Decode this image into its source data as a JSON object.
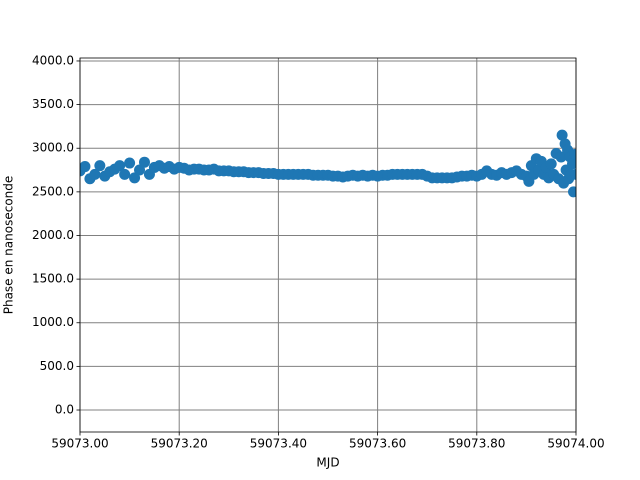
{
  "chart_data": {
    "type": "scatter",
    "x_label": "MJD",
    "y_label": "Phase en nanoseconde",
    "color": "#1f77b4",
    "grid": true,
    "xlim": [
      59073.0,
      59074.0
    ],
    "ylim": [
      -252,
      4034
    ],
    "xticks": [
      {
        "value": 59073.0,
        "label": "59073.00"
      },
      {
        "value": 59073.2,
        "label": "59073.20"
      },
      {
        "value": 59073.4,
        "label": "59073.40"
      },
      {
        "value": 59073.6,
        "label": "59073.60"
      },
      {
        "value": 59073.8,
        "label": "59073.80"
      },
      {
        "value": 59074.0,
        "label": "59074.00"
      }
    ],
    "yticks": [
      {
        "value": 0,
        "label": "0.0"
      },
      {
        "value": 500,
        "label": "500.0"
      },
      {
        "value": 1000,
        "label": "1000.0"
      },
      {
        "value": 1500,
        "label": "1500.0"
      },
      {
        "value": 2000,
        "label": "2000.0"
      },
      {
        "value": 2500,
        "label": "2500.0"
      },
      {
        "value": 3000,
        "label": "3000.0"
      },
      {
        "value": 3500,
        "label": "3500.0"
      },
      {
        "value": 4000,
        "label": "4000.0"
      }
    ],
    "x": [
      59073.0,
      59073.01,
      59073.02,
      59073.03,
      59073.04,
      59073.05,
      59073.06,
      59073.07,
      59073.08,
      59073.09,
      59073.1,
      59073.11,
      59073.12,
      59073.13,
      59073.14,
      59073.15,
      59073.16,
      59073.17,
      59073.18,
      59073.19,
      59073.2,
      59073.21,
      59073.22,
      59073.23,
      59073.24,
      59073.25,
      59073.26,
      59073.27,
      59073.28,
      59073.29,
      59073.3,
      59073.31,
      59073.32,
      59073.33,
      59073.34,
      59073.35,
      59073.36,
      59073.37,
      59073.38,
      59073.39,
      59073.4,
      59073.41,
      59073.42,
      59073.43,
      59073.44,
      59073.45,
      59073.46,
      59073.47,
      59073.48,
      59073.49,
      59073.5,
      59073.51,
      59073.52,
      59073.53,
      59073.54,
      59073.55,
      59073.56,
      59073.57,
      59073.58,
      59073.59,
      59073.6,
      59073.61,
      59073.62,
      59073.63,
      59073.64,
      59073.65,
      59073.66,
      59073.67,
      59073.68,
      59073.69,
      59073.7,
      59073.71,
      59073.72,
      59073.73,
      59073.74,
      59073.75,
      59073.76,
      59073.77,
      59073.78,
      59073.79,
      59073.8,
      59073.81,
      59073.82,
      59073.83,
      59073.84,
      59073.85,
      59073.86,
      59073.87,
      59073.88,
      59073.89,
      59073.9,
      59073.905,
      59073.91,
      59073.915,
      59073.92,
      59073.925,
      59073.93,
      59073.935,
      59073.94,
      59073.945,
      59073.95,
      59073.955,
      59073.96,
      59073.965,
      59073.97,
      59073.972,
      59073.975,
      59073.978,
      59073.98,
      59073.983,
      59073.985,
      59073.988,
      59073.99,
      59073.993,
      59073.995,
      59073.998,
      59074.0
    ],
    "y": [
      2740,
      2790,
      2650,
      2700,
      2800,
      2680,
      2730,
      2760,
      2800,
      2700,
      2830,
      2660,
      2750,
      2840,
      2700,
      2780,
      2800,
      2770,
      2790,
      2760,
      2780,
      2770,
      2750,
      2760,
      2760,
      2750,
      2750,
      2760,
      2740,
      2740,
      2740,
      2730,
      2730,
      2730,
      2720,
      2720,
      2720,
      2710,
      2710,
      2710,
      2700,
      2700,
      2700,
      2700,
      2700,
      2700,
      2700,
      2690,
      2690,
      2690,
      2690,
      2680,
      2680,
      2670,
      2680,
      2690,
      2680,
      2690,
      2680,
      2690,
      2680,
      2690,
      2690,
      2700,
      2700,
      2700,
      2700,
      2700,
      2700,
      2700,
      2680,
      2660,
      2660,
      2660,
      2660,
      2660,
      2670,
      2680,
      2680,
      2690,
      2680,
      2700,
      2740,
      2700,
      2690,
      2720,
      2700,
      2720,
      2740,
      2700,
      2680,
      2620,
      2800,
      2700,
      2880,
      2750,
      2850,
      2700,
      2780,
      2660,
      2820,
      2700,
      2940,
      2650,
      2900,
      3150,
      2600,
      3050,
      2750,
      2980,
      2650,
      2900,
      2700,
      2820,
      2500,
      2930,
      2700
    ]
  }
}
